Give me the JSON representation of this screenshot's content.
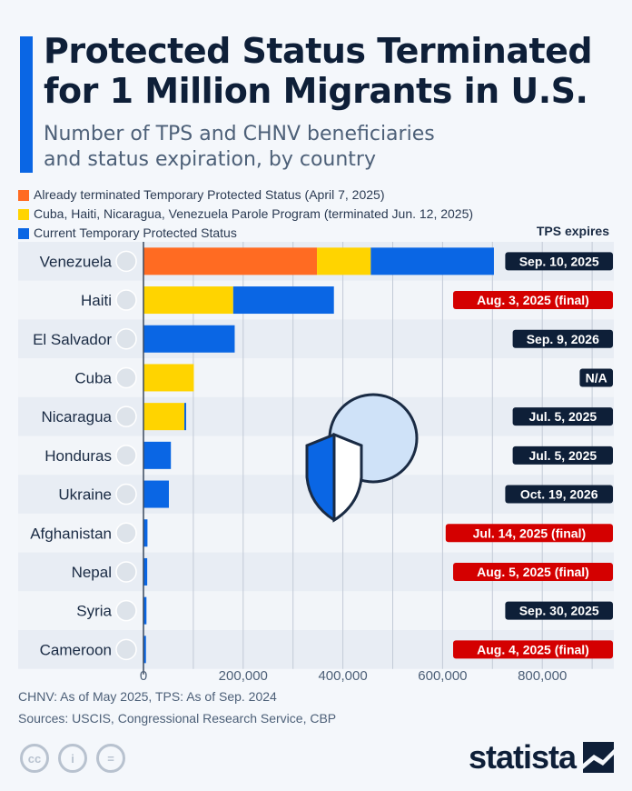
{
  "title": "Protected Status Terminated for 1 Million Migrants in U.S.",
  "title_line1": "Protected Status Terminated",
  "title_line2": "for 1 Million Migrants in U.S.",
  "subtitle_line1": "Number of TPS and CHNV beneficiaries",
  "subtitle_line2": "and status expiration, by country",
  "tps_header": "TPS expires",
  "notes": "CHNV: As of May 2025, TPS: As of Sep. 2024",
  "sources": "Sources: USCIS, Congressional Research Service, CBP",
  "brand": "statista",
  "license_icons": [
    "cc-icon",
    "attribution-icon",
    "no-derivatives-icon"
  ],
  "colors": {
    "terminated": "#ff6b22",
    "parole": "#ffd400",
    "current": "#0a66e4",
    "final_badge": "#d40000",
    "badge": "#0e1f38"
  },
  "chart_data": {
    "type": "bar",
    "orientation": "horizontal",
    "stacked": true,
    "xlim": [
      0,
      900000
    ],
    "xticks": [
      0,
      200000,
      400000,
      600000,
      800000
    ],
    "xtick_labels": [
      "0",
      "200,000",
      "400,000",
      "600,000",
      "800,000"
    ],
    "grid": true,
    "legend_position": "top-left",
    "categories": [
      "Venezuela",
      "Haiti",
      "El Salvador",
      "Cuba",
      "Nicaragua",
      "Honduras",
      "Ukraine",
      "Afghanistan",
      "Nepal",
      "Syria",
      "Cameroon"
    ],
    "series": [
      {
        "name": "Already terminated Temporary Protected Status (April 7, 2025)",
        "color": "#ff6b22",
        "values": [
          348000,
          0,
          0,
          0,
          0,
          0,
          0,
          0,
          0,
          0,
          0
        ]
      },
      {
        "name": "Cuba, Haiti, Nicaragua, Venezuela Parole Program (terminated Jun. 12, 2025)",
        "color": "#ffd400",
        "values": [
          108000,
          180000,
          0,
          101000,
          82000,
          0,
          0,
          0,
          0,
          0,
          0
        ]
      },
      {
        "name": "Current Temporary Protected Status",
        "color": "#0a66e4",
        "values": [
          247000,
          202000,
          183000,
          0,
          3000,
          55000,
          51000,
          8000,
          7500,
          6000,
          5000
        ]
      }
    ],
    "tps_expires": [
      {
        "text": "Sep. 10, 2025",
        "final": false
      },
      {
        "text": "Aug. 3, 2025 (final)",
        "final": true
      },
      {
        "text": "Sep. 9, 2026",
        "final": false
      },
      {
        "text": "N/A",
        "final": false
      },
      {
        "text": "Jul. 5, 2025",
        "final": false
      },
      {
        "text": "Jul. 5, 2025",
        "final": false
      },
      {
        "text": "Oct. 19, 2026",
        "final": false
      },
      {
        "text": "Jul. 14, 2025 (final)",
        "final": true
      },
      {
        "text": "Aug. 5, 2025 (final)",
        "final": true
      },
      {
        "text": "Sep. 30, 2025",
        "final": false
      },
      {
        "text": "Aug. 4, 2025 (final)",
        "final": true
      }
    ]
  }
}
